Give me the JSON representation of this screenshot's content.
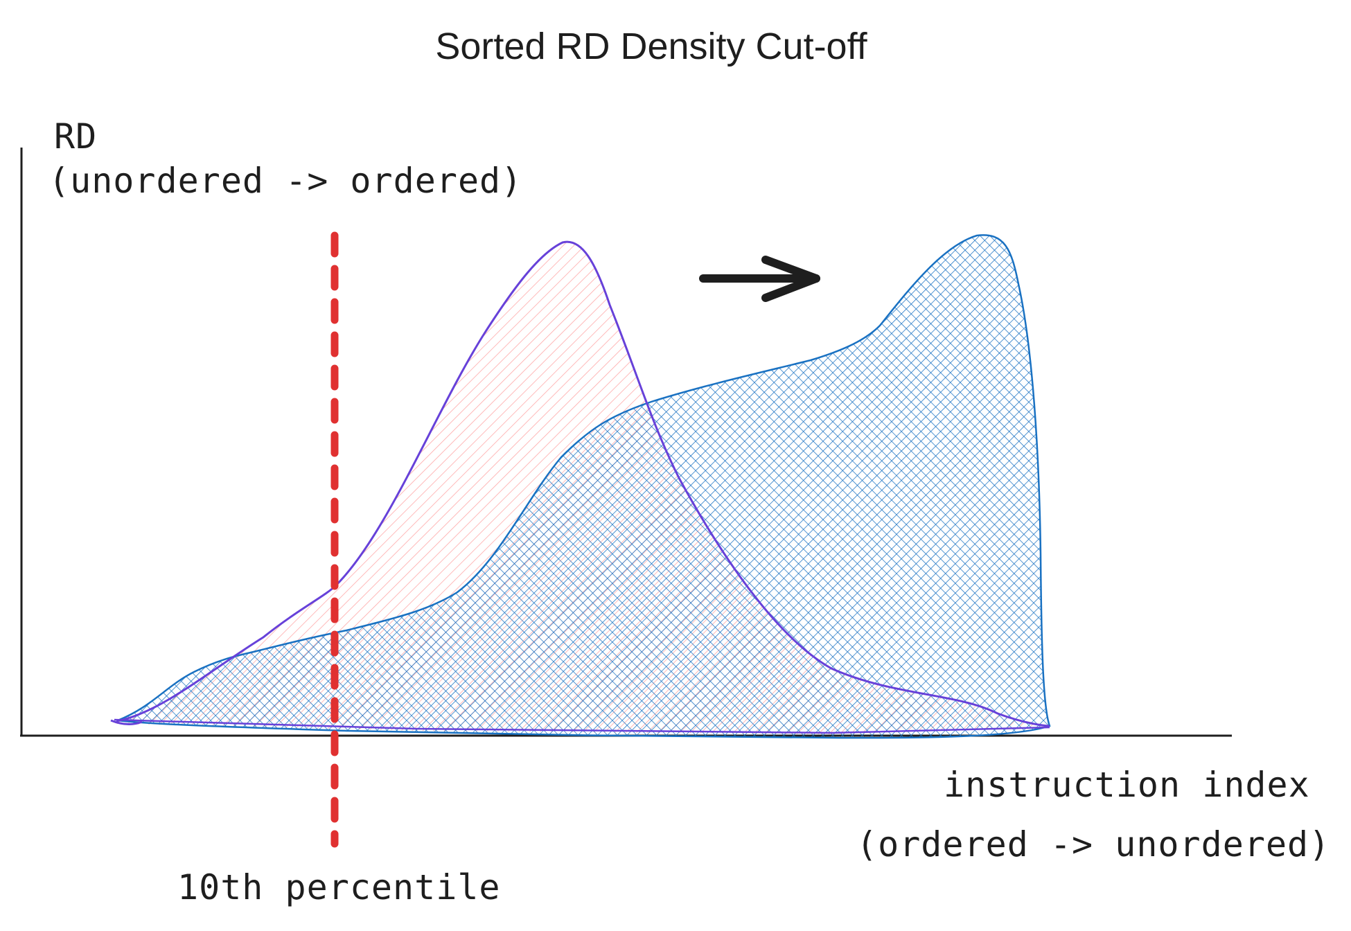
{
  "title": "Sorted RD Density Cut-off",
  "y_axis": {
    "label_line1": "RD",
    "label_line2": "(unordered -> ordered)"
  },
  "x_axis": {
    "label_line1": "instruction index",
    "label_line2": "(ordered -> unordered)"
  },
  "cutoff": {
    "label": "10th percentile",
    "color": "#e03131"
  },
  "curves": {
    "before": {
      "stroke": "#6741d9",
      "fill": "#ffc9c9",
      "pattern": "hatch"
    },
    "after": {
      "stroke": "#1971c2",
      "fill": "#1971c2",
      "pattern": "cross-hatch"
    }
  },
  "arrow": {
    "icon": "right-arrow-icon",
    "color": "#1e1e1e"
  },
  "axis_color": "#1e1e1e"
}
